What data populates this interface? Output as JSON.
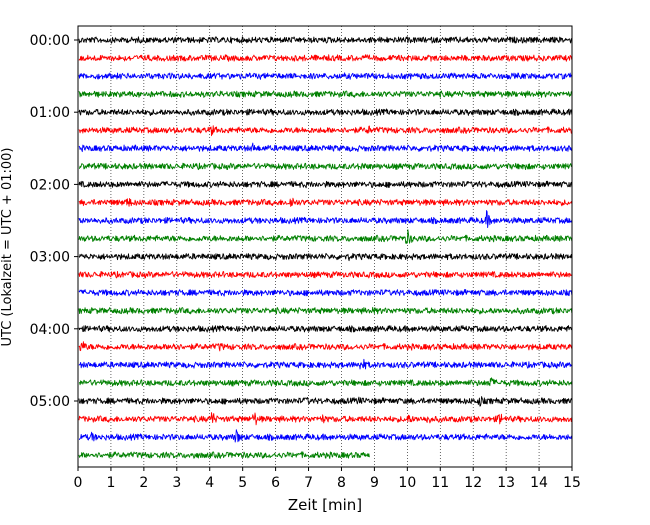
{
  "chart_data": {
    "type": "line",
    "xlabel": "Zeit  [min]",
    "ylabel": "UTC (Lokalzeit = UTC + 01:00)",
    "xlim": [
      0,
      15
    ],
    "x_ticks": [
      "0",
      "1",
      "2",
      "3",
      "4",
      "5",
      "6",
      "7",
      "8",
      "9",
      "10",
      "11",
      "12",
      "13",
      "14",
      "15"
    ],
    "y_tick_labels": [
      "00:00",
      "01:00",
      "02:00",
      "03:00",
      "04:00",
      "05:00"
    ],
    "grid": "vertical dotted",
    "colors": [
      "#000000",
      "#ff0000",
      "#0000ff",
      "#008000"
    ],
    "traces": [
      {
        "start": "00:00",
        "color": "#000000",
        "end_min": 15,
        "events": []
      },
      {
        "start": "00:15",
        "color": "#ff0000",
        "end_min": 15,
        "events": []
      },
      {
        "start": "00:30",
        "color": "#0000ff",
        "end_min": 15,
        "events": []
      },
      {
        "start": "00:45",
        "color": "#008000",
        "end_min": 15,
        "events": []
      },
      {
        "start": "01:00",
        "color": "#000000",
        "end_min": 15,
        "events": []
      },
      {
        "start": "01:15",
        "color": "#ff0000",
        "end_min": 15,
        "events": [
          {
            "t": 4.05,
            "amp": 5
          },
          {
            "t": 8.8,
            "amp": 4
          }
        ]
      },
      {
        "start": "01:30",
        "color": "#0000ff",
        "end_min": 15,
        "events": [
          {
            "t": 5.3,
            "amp": 4
          }
        ]
      },
      {
        "start": "01:45",
        "color": "#008000",
        "end_min": 15,
        "events": [
          {
            "t": 8.6,
            "amp": 4
          },
          {
            "t": 13.5,
            "amp": 4
          }
        ]
      },
      {
        "start": "02:00",
        "color": "#000000",
        "end_min": 15,
        "events": []
      },
      {
        "start": "02:15",
        "color": "#ff0000",
        "end_min": 15,
        "events": [
          {
            "t": 1.5,
            "amp": 6
          },
          {
            "t": 6.45,
            "amp": 8
          }
        ]
      },
      {
        "start": "02:30",
        "color": "#0000ff",
        "end_min": 15,
        "events": [
          {
            "t": 12.4,
            "amp": 9
          }
        ]
      },
      {
        "start": "02:45",
        "color": "#008000",
        "end_min": 15,
        "events": [
          {
            "t": 10.0,
            "amp": 9
          }
        ]
      },
      {
        "start": "03:00",
        "color": "#000000",
        "end_min": 15,
        "events": [
          {
            "t": 8.2,
            "amp": 3
          }
        ]
      },
      {
        "start": "03:15",
        "color": "#ff0000",
        "end_min": 15,
        "events": []
      },
      {
        "start": "03:30",
        "color": "#0000ff",
        "end_min": 15,
        "events": []
      },
      {
        "start": "03:45",
        "color": "#008000",
        "end_min": 15,
        "events": [
          {
            "t": 8.9,
            "amp": 3
          }
        ]
      },
      {
        "start": "04:00",
        "color": "#000000",
        "end_min": 15,
        "events": []
      },
      {
        "start": "04:15",
        "color": "#ff0000",
        "end_min": 15,
        "events": [
          {
            "t": 0.1,
            "amp": 7
          },
          {
            "t": 2.9,
            "amp": 6
          },
          {
            "t": 4.3,
            "amp": 4
          }
        ]
      },
      {
        "start": "04:30",
        "color": "#0000ff",
        "end_min": 15,
        "events": [
          {
            "t": 8.6,
            "amp": 9
          }
        ]
      },
      {
        "start": "04:45",
        "color": "#008000",
        "end_min": 15,
        "events": [
          {
            "t": 12.5,
            "amp": 7
          }
        ]
      },
      {
        "start": "05:00",
        "color": "#000000",
        "end_min": 15,
        "events": [
          {
            "t": 6.9,
            "amp": 4
          },
          {
            "t": 8.5,
            "amp": 4
          },
          {
            "t": 12.2,
            "amp": 5
          }
        ]
      },
      {
        "start": "05:15",
        "color": "#ff0000",
        "end_min": 15,
        "events": [
          {
            "t": 4.05,
            "amp": 9
          },
          {
            "t": 5.35,
            "amp": 8
          },
          {
            "t": 7.4,
            "amp": 4
          },
          {
            "t": 10.0,
            "amp": 5
          },
          {
            "t": 10.6,
            "amp": 5
          },
          {
            "t": 12.8,
            "amp": 7
          }
        ]
      },
      {
        "start": "05:30",
        "color": "#0000ff",
        "end_min": 15,
        "events": [
          {
            "t": 0.4,
            "amp": 5
          },
          {
            "t": 4.8,
            "amp": 8
          }
        ]
      },
      {
        "start": "05:45",
        "color": "#008000",
        "end_min": 8.85,
        "events": [
          {
            "t": 3.5,
            "amp": 3
          }
        ]
      }
    ]
  }
}
